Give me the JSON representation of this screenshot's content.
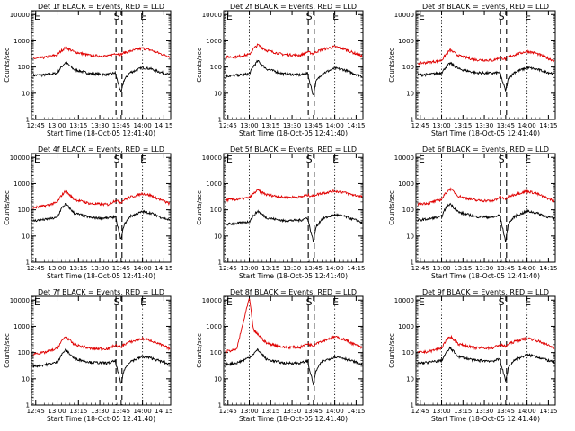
{
  "figure": {
    "common_xlabel": "Start Time (18-Oct-05 12:41:40)",
    "ylabel": "Counts/sec",
    "x_ticks": [
      12.75,
      13.0,
      13.25,
      13.5,
      13.75,
      14.0,
      14.25
    ],
    "x_tick_labels": [
      "12:45",
      "13:00",
      "13:15",
      "13:30",
      "13:45",
      "14:00",
      "14:15"
    ],
    "xlim": [
      12.7,
      14.33
    ],
    "y_ticks": [
      1,
      10,
      100,
      1000,
      10000
    ],
    "y_tick_labels": [
      "1",
      "10",
      "100",
      "1000",
      "10000"
    ],
    "ylim": [
      1,
      14000
    ],
    "y_scale": "log",
    "colors": {
      "events": "#000000",
      "lld": "#e00000"
    },
    "markers": [
      {
        "time": 12.72,
        "label": "E",
        "style": "dotted"
      },
      {
        "time": 13.0,
        "label": "",
        "style": "dotted"
      },
      {
        "time": 13.69,
        "label": "S",
        "style": "dashed"
      },
      {
        "time": 13.76,
        "label": "",
        "style": "dashed"
      },
      {
        "time": 14.0,
        "label": "E",
        "style": "dotted"
      }
    ]
  },
  "chart_data": [
    {
      "type": "line",
      "title": "Det 1f BLACK = Events, RED = LLD",
      "xlabel": "Start Time (18-Oct-05 12:41:40)",
      "ylabel": "Counts/sec",
      "series": [
        {
          "name": "Events",
          "x": [
            12.72,
            12.85,
            13.0,
            13.05,
            13.1,
            13.2,
            13.4,
            13.6,
            13.68,
            13.75,
            13.78,
            13.85,
            14.0,
            14.1,
            14.2,
            14.32
          ],
          "y": [
            48,
            50,
            58,
            100,
            150,
            80,
            55,
            52,
            60,
            10,
            30,
            60,
            95,
            85,
            65,
            50
          ]
        },
        {
          "name": "LLD",
          "x": [
            12.72,
            12.85,
            13.0,
            13.05,
            13.1,
            13.2,
            13.4,
            13.6,
            13.68,
            13.75,
            13.78,
            13.85,
            14.0,
            14.1,
            14.2,
            14.32
          ],
          "y": [
            210,
            230,
            290,
            420,
            560,
            380,
            270,
            260,
            330,
            300,
            350,
            400,
            520,
            440,
            330,
            250
          ]
        }
      ]
    },
    {
      "type": "line",
      "title": "Det 2f BLACK = Events, RED = LLD",
      "xlabel": "Start Time (18-Oct-05 12:41:40)",
      "ylabel": "Counts/sec",
      "series": [
        {
          "name": "Events",
          "x": [
            12.72,
            12.85,
            13.0,
            13.05,
            13.1,
            13.2,
            13.4,
            13.6,
            13.68,
            13.75,
            13.78,
            13.85,
            14.0,
            14.1,
            14.2,
            14.32
          ],
          "y": [
            45,
            48,
            55,
            110,
            170,
            85,
            55,
            50,
            58,
            8,
            28,
            55,
            90,
            80,
            60,
            45
          ]
        },
        {
          "name": "LLD",
          "x": [
            12.72,
            12.85,
            13.0,
            13.05,
            13.1,
            13.2,
            13.4,
            13.6,
            13.68,
            13.75,
            13.78,
            13.85,
            14.0,
            14.1,
            14.2,
            14.32
          ],
          "y": [
            240,
            250,
            300,
            500,
            700,
            430,
            300,
            280,
            380,
            320,
            380,
            460,
            600,
            500,
            370,
            260
          ]
        }
      ]
    },
    {
      "type": "line",
      "title": "Det 3f BLACK = Events, RED = LLD",
      "xlabel": "Start Time (18-Oct-05 12:41:40)",
      "ylabel": "Counts/sec",
      "series": [
        {
          "name": "Events",
          "x": [
            12.72,
            12.85,
            13.0,
            13.05,
            13.1,
            13.2,
            13.4,
            13.6,
            13.68,
            13.75,
            13.78,
            13.85,
            14.0,
            14.1,
            14.2,
            14.32
          ],
          "y": [
            50,
            52,
            60,
            100,
            140,
            85,
            60,
            58,
            62,
            12,
            35,
            62,
            95,
            85,
            68,
            55
          ]
        },
        {
          "name": "LLD",
          "x": [
            12.72,
            12.85,
            13.0,
            13.05,
            13.1,
            13.2,
            13.4,
            13.6,
            13.68,
            13.75,
            13.78,
            13.85,
            14.0,
            14.1,
            14.2,
            14.32
          ],
          "y": [
            140,
            150,
            180,
            300,
            450,
            270,
            190,
            180,
            230,
            200,
            240,
            290,
            400,
            340,
            250,
            170
          ]
        }
      ]
    },
    {
      "type": "line",
      "title": "Det 4f BLACK = Events, RED = LLD",
      "xlabel": "Start Time (18-Oct-05 12:41:40)",
      "ylabel": "Counts/sec",
      "series": [
        {
          "name": "Events",
          "x": [
            12.72,
            12.85,
            13.0,
            13.05,
            13.1,
            13.2,
            13.4,
            13.6,
            13.68,
            13.75,
            13.78,
            13.85,
            14.0,
            14.1,
            14.2,
            14.32
          ],
          "y": [
            38,
            42,
            50,
            110,
            170,
            75,
            50,
            48,
            55,
            7,
            25,
            55,
            85,
            75,
            55,
            40
          ]
        },
        {
          "name": "LLD",
          "x": [
            12.72,
            12.85,
            13.0,
            13.05,
            13.1,
            13.2,
            13.4,
            13.6,
            13.68,
            13.75,
            13.78,
            13.85,
            14.0,
            14.1,
            14.2,
            14.32
          ],
          "y": [
            120,
            140,
            190,
            350,
            520,
            250,
            170,
            160,
            230,
            190,
            240,
            300,
            420,
            350,
            250,
            170
          ]
        }
      ]
    },
    {
      "type": "line",
      "title": "Det 5f BLACK = Events, RED = LLD",
      "xlabel": "Start Time (18-Oct-05 12:41:40)",
      "ylabel": "Counts/sec",
      "series": [
        {
          "name": "Events",
          "x": [
            12.72,
            12.85,
            13.0,
            13.05,
            13.1,
            13.2,
            13.4,
            13.6,
            13.68,
            13.75,
            13.78,
            13.85,
            14.0,
            14.1,
            14.2,
            14.32
          ],
          "y": [
            28,
            30,
            35,
            60,
            90,
            50,
            38,
            40,
            50,
            6,
            22,
            45,
            65,
            58,
            45,
            33
          ]
        },
        {
          "name": "LLD",
          "x": [
            12.72,
            12.85,
            13.0,
            13.05,
            13.1,
            13.2,
            13.4,
            13.6,
            13.68,
            13.75,
            13.78,
            13.85,
            14.0,
            14.1,
            14.2,
            14.32
          ],
          "y": [
            240,
            250,
            290,
            420,
            560,
            380,
            300,
            310,
            360,
            340,
            380,
            430,
            520,
            470,
            380,
            320
          ]
        }
      ]
    },
    {
      "type": "line",
      "title": "Det 6f BLACK = Events, RED = LLD",
      "xlabel": "Start Time (18-Oct-05 12:41:40)",
      "ylabel": "Counts/sec",
      "series": [
        {
          "name": "Events",
          "x": [
            12.72,
            12.85,
            13.0,
            13.05,
            13.1,
            13.2,
            13.4,
            13.6,
            13.68,
            13.75,
            13.78,
            13.85,
            14.0,
            14.1,
            14.2,
            14.32
          ],
          "y": [
            40,
            45,
            55,
            120,
            170,
            80,
            55,
            52,
            62,
            6,
            28,
            55,
            88,
            78,
            60,
            45
          ]
        },
        {
          "name": "LLD",
          "x": [
            12.72,
            12.85,
            13.0,
            13.05,
            13.1,
            13.2,
            13.4,
            13.6,
            13.68,
            13.75,
            13.78,
            13.85,
            14.0,
            14.1,
            14.2,
            14.32
          ],
          "y": [
            170,
            180,
            250,
            450,
            650,
            330,
            230,
            220,
            300,
            260,
            320,
            380,
            520,
            430,
            310,
            220
          ]
        }
      ]
    },
    {
      "type": "line",
      "title": "Det 7f BLACK = Events, RED = LLD",
      "xlabel": "Start Time (18-Oct-05 12:41:40)",
      "ylabel": "Counts/sec",
      "series": [
        {
          "name": "Events",
          "x": [
            12.72,
            12.85,
            13.0,
            13.05,
            13.1,
            13.2,
            13.4,
            13.6,
            13.68,
            13.75,
            13.78,
            13.85,
            14.0,
            14.1,
            14.2,
            14.32
          ],
          "y": [
            30,
            34,
            42,
            80,
            130,
            60,
            42,
            40,
            48,
            6,
            20,
            45,
            70,
            62,
            48,
            35
          ]
        },
        {
          "name": "LLD",
          "x": [
            12.72,
            12.85,
            13.0,
            13.05,
            13.1,
            13.2,
            13.4,
            13.6,
            13.68,
            13.75,
            13.78,
            13.85,
            14.0,
            14.1,
            14.2,
            14.32
          ],
          "y": [
            90,
            100,
            140,
            260,
            420,
            200,
            140,
            140,
            190,
            160,
            200,
            250,
            340,
            290,
            210,
            140
          ]
        }
      ]
    },
    {
      "type": "line",
      "title": "Det 8f BLACK = Events, RED = LLD",
      "xlabel": "Start Time (18-Oct-05 12:41:40)",
      "ylabel": "Counts/sec",
      "series": [
        {
          "name": "Events",
          "x": [
            12.72,
            12.85,
            13.0,
            13.05,
            13.1,
            13.2,
            13.4,
            13.6,
            13.68,
            13.75,
            13.78,
            13.85,
            14.0,
            14.1,
            14.2,
            14.32
          ],
          "y": [
            35,
            40,
            65,
            90,
            130,
            55,
            40,
            40,
            48,
            6,
            20,
            45,
            70,
            62,
            48,
            35
          ]
        },
        {
          "name": "LLD",
          "x": [
            12.72,
            12.85,
            13.0,
            13.05,
            13.1,
            13.2,
            13.4,
            13.6,
            13.68,
            13.75,
            13.78,
            13.85,
            14.0,
            14.1,
            14.2,
            14.32
          ],
          "y": [
            110,
            130,
            12000,
            700,
            500,
            230,
            160,
            160,
            220,
            180,
            230,
            280,
            400,
            330,
            230,
            150
          ]
        }
      ]
    },
    {
      "type": "line",
      "title": "Det 9f BLACK = Events, RED = LLD",
      "xlabel": "Start Time (18-Oct-05 12:41:40)",
      "ylabel": "Counts/sec",
      "series": [
        {
          "name": "Events",
          "x": [
            12.72,
            12.85,
            13.0,
            13.05,
            13.1,
            13.2,
            13.4,
            13.6,
            13.68,
            13.75,
            13.78,
            13.85,
            14.0,
            14.1,
            14.2,
            14.32
          ],
          "y": [
            40,
            42,
            50,
            95,
            150,
            70,
            50,
            48,
            56,
            8,
            26,
            52,
            82,
            72,
            56,
            42
          ]
        },
        {
          "name": "LLD",
          "x": [
            12.72,
            12.85,
            13.0,
            13.05,
            13.1,
            13.2,
            13.4,
            13.6,
            13.68,
            13.75,
            13.78,
            13.85,
            14.0,
            14.1,
            14.2,
            14.32
          ],
          "y": [
            100,
            110,
            150,
            280,
            420,
            210,
            150,
            150,
            200,
            170,
            210,
            260,
            360,
            300,
            220,
            150
          ]
        }
      ]
    }
  ]
}
